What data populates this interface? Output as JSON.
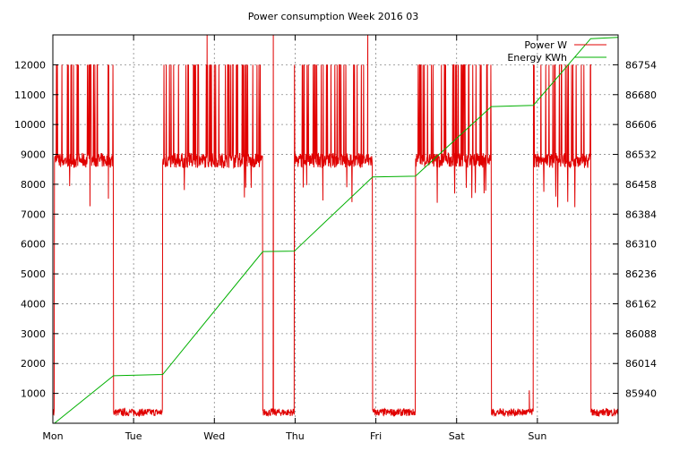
{
  "chart_data": {
    "type": "line",
    "title": "Power consumption Week 2016 03",
    "xlabel": "",
    "ylabel": "",
    "grid": true,
    "legend_position": "top-right",
    "x_ticks": [
      "Mon",
      "Tue",
      "Wed",
      "Thu",
      "Fri",
      "Sat",
      "Sun"
    ],
    "xlim": [
      0,
      7
    ],
    "ylim": [
      0,
      13000
    ],
    "y2lim": [
      85900,
      86832
    ],
    "y_ticks": [
      1000,
      2000,
      3000,
      4000,
      5000,
      6000,
      7000,
      8000,
      9000,
      10000,
      11000,
      12000
    ],
    "y2_ticks": [
      85940,
      86014,
      86088,
      86162,
      86236,
      86310,
      86384,
      86458,
      86532,
      86606,
      86680,
      86754
    ],
    "series": [
      {
        "name": "Power W",
        "axis": "left",
        "color": "#e00000",
        "active_periods": [
          [
            0.02,
            0.75
          ],
          [
            1.36,
            2.6
          ],
          [
            2.99,
            3.96
          ],
          [
            4.49,
            5.43
          ],
          [
            5.95,
            6.66
          ]
        ],
        "active_level": 8800,
        "spike_level": 12000,
        "idle_level": 320,
        "max_spikes": [
          [
            1.91,
            13000
          ],
          [
            2.73,
            13000
          ],
          [
            3.9,
            13000
          ]
        ],
        "idle_spikes": [
          [
            5.9,
            1100
          ]
        ]
      },
      {
        "name": "Energy KWh",
        "axis": "right",
        "color": "#00b000",
        "x": [
          0.02,
          0.75,
          1.36,
          2.6,
          2.99,
          3.96,
          4.49,
          5.43,
          5.95,
          6.66,
          7.0
        ],
        "values": [
          85900,
          86014,
          86017,
          86312,
          86313,
          86491,
          86493,
          86660,
          86663,
          86823,
          86826
        ]
      }
    ]
  }
}
